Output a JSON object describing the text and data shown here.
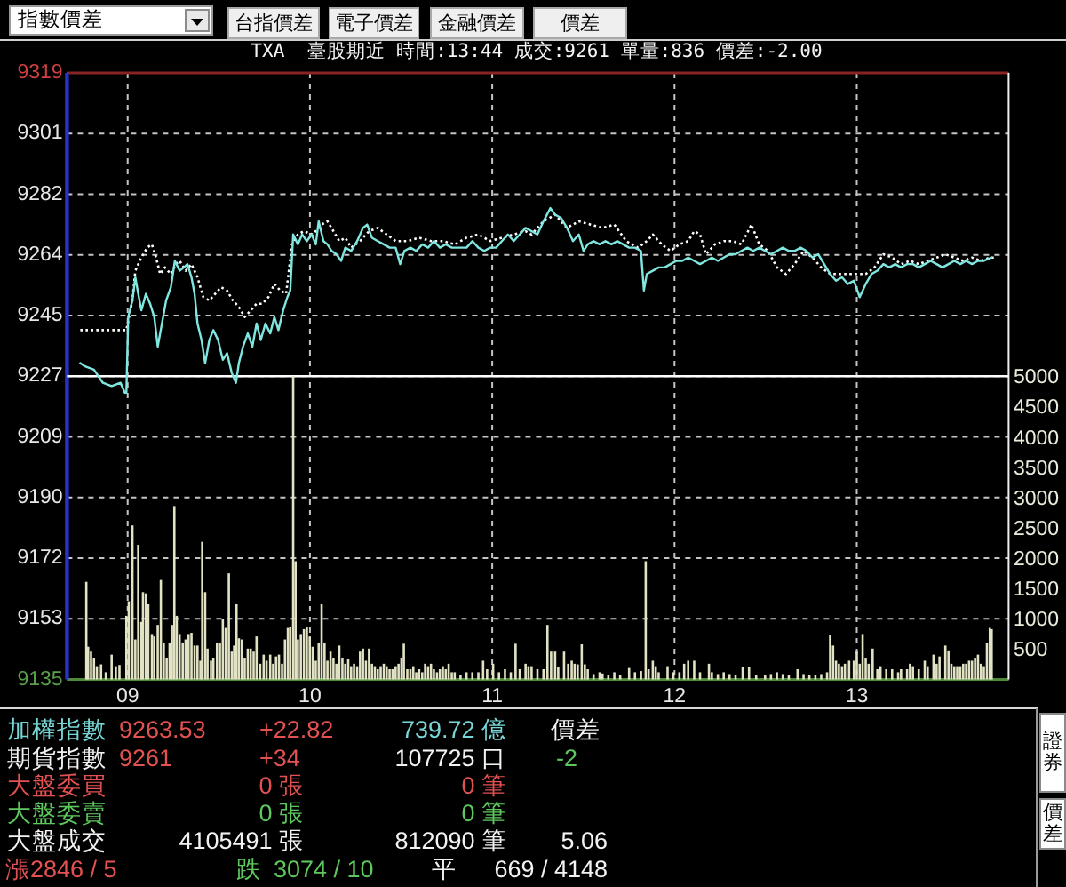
{
  "chart_data": {
    "type": "line",
    "title": "TXA  臺股期近 時間:13:44 成交:9261 單量:836 價差:-2.00",
    "xlim": [
      8.667,
      13.833
    ],
    "xticks": [
      {
        "value": 9,
        "label": "09"
      },
      10,
      11,
      12,
      13
    ],
    "ylim": [
      9135,
      9319
    ],
    "yticks": [
      9135,
      {
        "value": 9153.4,
        "label": "9153"
      },
      {
        "value": 9171.8,
        "label": "9172"
      },
      {
        "value": 9190.2,
        "label": "9190"
      },
      {
        "value": 9208.6,
        "label": "9209"
      },
      9227,
      {
        "value": 9245.4,
        "label": "9245"
      },
      {
        "value": 9263.8,
        "label": "9264"
      },
      {
        "value": 9282.2,
        "label": "9282"
      },
      {
        "value": 9300.6,
        "label": "9301"
      },
      9319
    ],
    "y2lim": [
      0,
      10000
    ],
    "y2ticks": [
      500,
      1000,
      1500,
      2000,
      2500,
      3000,
      3500,
      4000,
      4500,
      5000
    ],
    "grid": true,
    "ref_lines": [
      {
        "axis": "y",
        "value": 9227,
        "color": "#ffffff"
      }
    ],
    "series": [
      {
        "type": "bar",
        "axis": "y2",
        "color": "#e2e2c4",
        "x": [
          8.773,
          8.783,
          8.799,
          8.815,
          8.831,
          8.854,
          8.88,
          8.912,
          8.935,
          8.955,
          8.993,
          9.006,
          9.026,
          9.042,
          9.058,
          9.075,
          9.084,
          9.1,
          9.113,
          9.133,
          9.146,
          9.165,
          9.182,
          9.198,
          9.214,
          9.23,
          9.243,
          9.256,
          9.269,
          9.285,
          9.302,
          9.318,
          9.334,
          9.35,
          9.367,
          9.383,
          9.399,
          9.409,
          9.425,
          9.438,
          9.457,
          9.47,
          9.49,
          9.506,
          9.522,
          9.538,
          9.555,
          9.571,
          9.584,
          9.597,
          9.61,
          9.626,
          9.642,
          9.659,
          9.675,
          9.691,
          9.707,
          9.727,
          9.746,
          9.762,
          9.782,
          9.798,
          9.814,
          9.83,
          9.847,
          9.863,
          9.879,
          9.892,
          9.908,
          9.921,
          9.934,
          9.95,
          9.967,
          9.983,
          9.999,
          10.015,
          10.032,
          10.048,
          10.064,
          10.08,
          10.096,
          10.113,
          10.129,
          10.145,
          10.161,
          10.178,
          10.194,
          10.21,
          10.226,
          10.242,
          10.259,
          10.275,
          10.291,
          10.307,
          10.324,
          10.34,
          10.356,
          10.372,
          10.388,
          10.405,
          10.421,
          10.437,
          10.453,
          10.47,
          10.486,
          10.502,
          10.515,
          10.534,
          10.551,
          10.567,
          10.583,
          10.599,
          10.616,
          10.632,
          10.648,
          10.664,
          10.68,
          10.697,
          10.713,
          10.729,
          10.745,
          10.761,
          10.778,
          10.794,
          10.826,
          10.859,
          10.891,
          10.924,
          10.95,
          10.972,
          11.005,
          11.037,
          11.07,
          11.102,
          11.128,
          11.151,
          11.183,
          11.199,
          11.216,
          11.248,
          11.281,
          11.303,
          11.323,
          11.345,
          11.362,
          11.394,
          11.417,
          11.436,
          11.452,
          11.469,
          11.491,
          11.508,
          11.524,
          11.556,
          11.589,
          11.605,
          11.637,
          11.67,
          11.702,
          11.751,
          11.783,
          11.816,
          11.842,
          11.858,
          11.881,
          11.897,
          11.913,
          11.962,
          11.994,
          12.027,
          12.053,
          12.075,
          12.108,
          12.14,
          12.189,
          12.205,
          12.238,
          12.27,
          12.302,
          12.335,
          12.374,
          12.409,
          12.448,
          12.497,
          12.529,
          12.562,
          12.594,
          12.627,
          12.675,
          12.708,
          12.74,
          12.773,
          12.805,
          12.837,
          12.854,
          12.87,
          12.886,
          12.902,
          12.919,
          12.935,
          12.958,
          12.984,
          13.0,
          13.016,
          13.032,
          13.049,
          13.065,
          13.087,
          13.113,
          13.13,
          13.162,
          13.194,
          13.227,
          13.243,
          13.276,
          13.292,
          13.308,
          13.34,
          13.373,
          13.389,
          13.421,
          13.438,
          13.454,
          13.486,
          13.503,
          13.519,
          13.535,
          13.551,
          13.568,
          13.584,
          13.6,
          13.616,
          13.632,
          13.649,
          13.665,
          13.681,
          13.697,
          13.714,
          13.73,
          13.74
        ],
        "values": [
          1610,
          540,
          460,
          360,
          220,
          250,
          120,
          410,
          220,
          240,
          1050,
          1290,
          2540,
          660,
          2220,
          950,
          1440,
          1420,
          1240,
          750,
          710,
          900,
          1640,
          610,
          360,
          610,
          900,
          2860,
          1050,
          750,
          610,
          660,
          750,
          770,
          560,
          560,
          310,
          2270,
          1440,
          510,
          310,
          360,
          610,
          610,
          1000,
          850,
          1750,
          460,
          560,
          1240,
          680,
          660,
          360,
          510,
          510,
          460,
          710,
          260,
          410,
          310,
          410,
          260,
          380,
          410,
          260,
          660,
          850,
          870,
          5000,
          1950,
          660,
          750,
          830,
          870,
          710,
          540,
          310,
          610,
          1240,
          610,
          310,
          460,
          360,
          260,
          560,
          360,
          260,
          340,
          220,
          260,
          220,
          460,
          510,
          310,
          510,
          260,
          220,
          170,
          220,
          260,
          220,
          170,
          170,
          220,
          260,
          360,
          590,
          170,
          170,
          220,
          120,
          170,
          120,
          260,
          220,
          260,
          170,
          120,
          170,
          220,
          170,
          260,
          120,
          120,
          70,
          120,
          120,
          120,
          310,
          170,
          260,
          120,
          170,
          120,
          590,
          170,
          260,
          220,
          220,
          170,
          170,
          900,
          460,
          460,
          200,
          460,
          260,
          310,
          260,
          250,
          580,
          250,
          170,
          90,
          120,
          100,
          70,
          120,
          70,
          190,
          120,
          140,
          1950,
          170,
          310,
          220,
          120,
          220,
          120,
          120,
          260,
          310,
          310,
          120,
          260,
          120,
          90,
          120,
          90,
          70,
          200,
          200,
          70,
          70,
          90,
          120,
          90,
          70,
          170,
          90,
          70,
          70,
          90,
          120,
          730,
          560,
          310,
          260,
          220,
          260,
          310,
          310,
          460,
          260,
          750,
          360,
          260,
          510,
          170,
          220,
          170,
          170,
          120,
          170,
          170,
          260,
          220,
          170,
          310,
          220,
          410,
          260,
          380,
          560,
          480,
          260,
          220,
          220,
          220,
          260,
          260,
          310,
          310,
          360,
          410,
          260,
          220,
          610,
          850,
          830
        ]
      },
      {
        "color": "#ffffff",
        "line_style": "dotted",
        "x": [
          8.74,
          8.993,
          9.026,
          9.042,
          9.075,
          9.107,
          9.133,
          9.156,
          9.178,
          9.204,
          9.237,
          9.263,
          9.285,
          9.318,
          9.35,
          9.383,
          9.415,
          9.448,
          9.48,
          9.512,
          9.545,
          9.577,
          9.61,
          9.642,
          9.675,
          9.707,
          9.74,
          9.772,
          9.805,
          9.837,
          9.869,
          9.902,
          9.934,
          9.967,
          10.015,
          10.064,
          10.096,
          10.129,
          10.161,
          10.194,
          10.226,
          10.275,
          10.324,
          10.372,
          10.421,
          10.47,
          10.535,
          10.6,
          10.664,
          10.729,
          10.794,
          10.859,
          10.924,
          10.989,
          11.053,
          11.118,
          11.183,
          11.216,
          11.281,
          11.345,
          11.41,
          11.475,
          11.54,
          11.605,
          11.67,
          11.735,
          11.8,
          11.848,
          11.881,
          11.93,
          11.978,
          12.027,
          12.075,
          12.108,
          12.14,
          12.173,
          12.221,
          12.27,
          12.319,
          12.367,
          12.422,
          12.465,
          12.513,
          12.562,
          12.611,
          12.659,
          12.708,
          12.757,
          12.805,
          12.854,
          12.902,
          12.951,
          13.0,
          13.049,
          13.097,
          13.146,
          13.194,
          13.243,
          13.292,
          13.34,
          13.389,
          13.438,
          13.486,
          13.535,
          13.584,
          13.632,
          13.681,
          13.73,
          13.756
        ],
        "values": [
          9241,
          9241,
          9250,
          9259,
          9263,
          9266,
          9267,
          9263,
          9258,
          9260,
          9258,
          9261,
          9262,
          9259,
          9261,
          9257,
          9251,
          9250,
          9252,
          9254,
          9253,
          9250,
          9248,
          9245,
          9247,
          9249,
          9249,
          9251,
          9255,
          9253,
          9252,
          9267,
          9270,
          9271,
          9270,
          9273,
          9274,
          9271,
          9268,
          9269,
          9266,
          9268,
          9271,
          9272,
          9270,
          9268,
          9268,
          9269,
          9268,
          9268,
          9267,
          9269,
          9270,
          9268,
          9269,
          9270,
          9271,
          9270,
          9274,
          9276,
          9272,
          9274,
          9273,
          9272,
          9273,
          9268,
          9266,
          9268,
          9270,
          9267,
          9265,
          9267,
          9268,
          9271,
          9270,
          9264,
          9267,
          9268,
          9268,
          9267,
          9273,
          9267,
          9265,
          9260,
          9258,
          9261,
          9265,
          9263,
          9260,
          9258,
          9258,
          9258,
          9258,
          9258,
          9260,
          9264,
          9263,
          9261,
          9262,
          9261,
          9262,
          9263,
          9264,
          9263,
          9262,
          9263,
          9262,
          9263,
          9263
        ]
      },
      {
        "color": "#80e6e0",
        "x": [
          8.74,
          8.766,
          8.815,
          8.864,
          8.912,
          8.961,
          8.984,
          8.993,
          9.003,
          9.026,
          9.042,
          9.058,
          9.075,
          9.1,
          9.123,
          9.146,
          9.165,
          9.188,
          9.211,
          9.237,
          9.259,
          9.285,
          9.308,
          9.328,
          9.35,
          9.367,
          9.383,
          9.405,
          9.425,
          9.448,
          9.47,
          9.496,
          9.522,
          9.545,
          9.571,
          9.594,
          9.61,
          9.633,
          9.659,
          9.684,
          9.707,
          9.73,
          9.756,
          9.782,
          9.805,
          9.827,
          9.853,
          9.876,
          9.892,
          9.908,
          9.934,
          9.957,
          9.983,
          10.009,
          10.032,
          10.048,
          10.074,
          10.096,
          10.119,
          10.145,
          10.171,
          10.194,
          10.226,
          10.259,
          10.291,
          10.314,
          10.34,
          10.372,
          10.405,
          10.437,
          10.47,
          10.495,
          10.518,
          10.551,
          10.583,
          10.616,
          10.648,
          10.68,
          10.713,
          10.745,
          10.778,
          10.81,
          10.859,
          10.891,
          10.924,
          10.956,
          10.989,
          11.021,
          11.053,
          11.086,
          11.118,
          11.151,
          11.183,
          11.216,
          11.248,
          11.281,
          11.319,
          11.345,
          11.378,
          11.41,
          11.443,
          11.475,
          11.501,
          11.524,
          11.556,
          11.589,
          11.621,
          11.654,
          11.686,
          11.718,
          11.751,
          11.783,
          11.816,
          11.832,
          11.848,
          11.881,
          11.913,
          11.946,
          11.978,
          12.01,
          12.043,
          12.075,
          12.108,
          12.14,
          12.173,
          12.205,
          12.238,
          12.27,
          12.302,
          12.335,
          12.367,
          12.4,
          12.432,
          12.465,
          12.497,
          12.529,
          12.562,
          12.594,
          12.627,
          12.659,
          12.692,
          12.724,
          12.757,
          12.789,
          12.821,
          12.854,
          12.886,
          12.919,
          12.951,
          12.984,
          13.016,
          13.049,
          13.081,
          13.113,
          13.146,
          13.178,
          13.211,
          13.243,
          13.276,
          13.308,
          13.34,
          13.373,
          13.405,
          13.438,
          13.47,
          13.503,
          13.535,
          13.568,
          13.6,
          13.632,
          13.665,
          13.697,
          13.74
        ],
        "values": [
          9231,
          9230,
          9229,
          9225,
          9224,
          9225,
          9222,
          9222,
          9245,
          9250,
          9257,
          9252,
          9247,
          9252,
          9249,
          9245,
          9236,
          9243,
          9250,
          9254,
          9262,
          9259,
          9260,
          9261,
          9257,
          9252,
          9243,
          9238,
          9231,
          9238,
          9241,
          9238,
          9232,
          9234,
          9228,
          9225,
          9231,
          9236,
          9240,
          9236,
          9243,
          9238,
          9243,
          9240,
          9245,
          9241,
          9247,
          9251,
          9253,
          9270,
          9267,
          9270,
          9268,
          9270,
          9267,
          9274,
          9268,
          9267,
          9265,
          9264,
          9262,
          9266,
          9265,
          9268,
          9272,
          9273,
          9269,
          9268,
          9267,
          9266,
          9266,
          9261,
          9265,
          9266,
          9265,
          9267,
          9266,
          9268,
          9266,
          9267,
          9266,
          9266,
          9266,
          9268,
          9266,
          9265,
          9266,
          9266,
          9268,
          9270,
          9268,
          9270,
          9272,
          9271,
          9270,
          9274,
          9278,
          9276,
          9275,
          9272,
          9268,
          9270,
          9265,
          9267,
          9268,
          9267,
          9268,
          9267,
          9268,
          9267,
          9266,
          9266,
          9265,
          9253,
          9258,
          9259,
          9260,
          9260,
          9261,
          9262,
          9262,
          9263,
          9262,
          9261,
          9262,
          9263,
          9262,
          9263,
          9264,
          9264,
          9265,
          9266,
          9265,
          9266,
          9265,
          9264,
          9265,
          9266,
          9265,
          9265,
          9266,
          9265,
          9263,
          9264,
          9261,
          9258,
          9256,
          9257,
          9255,
          9256,
          9251,
          9255,
          9258,
          9259,
          9261,
          9260,
          9261,
          9260,
          9261,
          9261,
          9260,
          9261,
          9262,
          9261,
          9260,
          9261,
          9262,
          9261,
          9262,
          9261,
          9262,
          9262,
          9263
        ]
      }
    ],
    "annotations": [
      "指數價差",
      "台指價差",
      "電子價差",
      "金融價差",
      "價差",
      "加權指數",
      "9263.53",
      "+22.82",
      "739.72 億",
      "價差",
      "期貨指數",
      "9261",
      "+34",
      "107725 口",
      "-2",
      "大盤委買",
      "0 張",
      "0 筆",
      "大盤委賣",
      "0 張",
      "0 筆",
      "大盤成交",
      "4105491 張",
      "812090 筆",
      "5.06",
      "漲",
      "2846 / 5",
      "跌",
      "3074 / 10",
      "平",
      "669 / 4148",
      "證券",
      "價差"
    ]
  }
}
